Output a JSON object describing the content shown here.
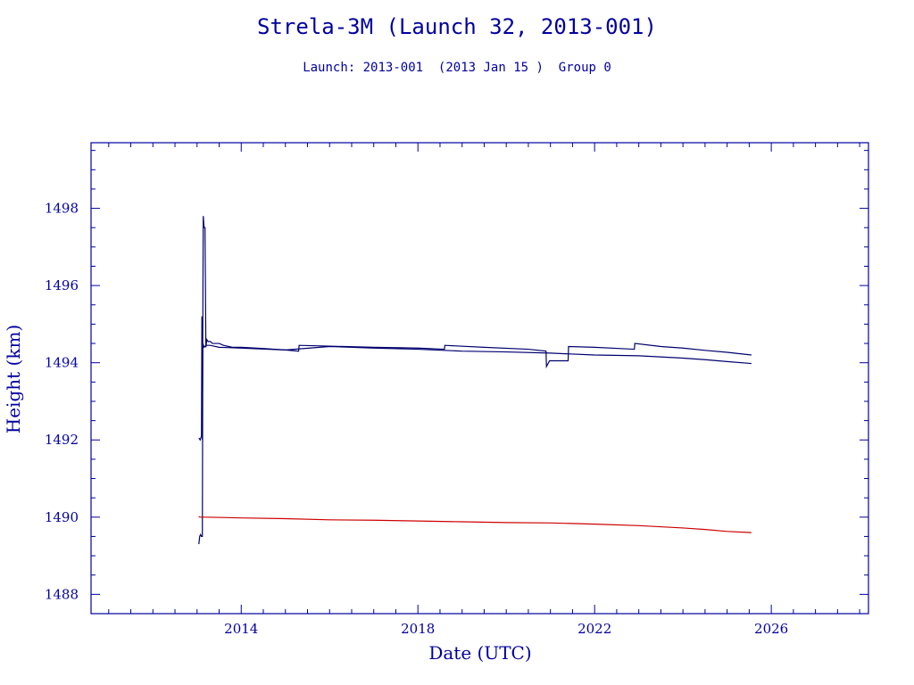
{
  "chart_data": {
    "type": "line",
    "title": "Strela-3M (Launch 32, 2013-001)",
    "subtitle": "Launch: 2013-001  (2013 Jan 15 )  Group 0",
    "xlabel": "Date (UTC)",
    "ylabel": "Height (km)",
    "xlim": [
      2010.6,
      2028.2
    ],
    "ylim": [
      1487.5,
      1499.7
    ],
    "x_ticks": [
      2014,
      2018,
      2022,
      2026
    ],
    "y_ticks": [
      1488,
      1490,
      1492,
      1494,
      1496,
      1498
    ],
    "grid": false,
    "colors": {
      "axes": "#0000a0",
      "apogee": "#00006e",
      "perigee": "#cc0000"
    },
    "series": [
      {
        "x": [
          2013.04,
          2013.07,
          2013.1,
          2013.11,
          2013.12,
          2013.14,
          2013.16,
          2013.18,
          2013.2,
          2013.22,
          2013.25,
          2013.3,
          2013.35,
          2013.5,
          2013.6,
          2013.8,
          2014.0,
          2014.5,
          2015.0,
          2015.3,
          2015.31,
          2016.0,
          2017.0,
          2018.0,
          2018.6,
          2018.61,
          2019.5,
          2020.5,
          2020.9,
          2020.91,
          2020.98,
          2021.4,
          2021.41,
          2022.0,
          2022.9,
          2022.91,
          2023.5,
          2024.0,
          2024.5,
          2025.0,
          2025.55
        ],
        "values": [
          1492.05,
          1492.0,
          1492.1,
          1495.2,
          1492.0,
          1497.8,
          1497.5,
          1497.5,
          1494.4,
          1494.6,
          1494.55,
          1494.55,
          1494.5,
          1494.5,
          1494.45,
          1494.4,
          1494.4,
          1494.37,
          1494.33,
          1494.3,
          1494.45,
          1494.43,
          1494.4,
          1494.38,
          1494.35,
          1494.45,
          1494.4,
          1494.35,
          1494.3,
          1493.9,
          1494.05,
          1494.05,
          1494.42,
          1494.4,
          1494.35,
          1494.5,
          1494.42,
          1494.38,
          1494.32,
          1494.27,
          1494.2
        ]
      },
      {
        "x": [
          2013.04,
          2013.06,
          2013.08,
          2013.1,
          2013.12,
          2013.13,
          2013.16,
          2013.2,
          2013.3,
          2013.5,
          2014.0,
          2015.0,
          2016.0,
          2017.0,
          2018.0,
          2019.0,
          2020.0,
          2021.0,
          2022.0,
          2023.0,
          2024.0,
          2024.5,
          2025.0,
          2025.55
        ],
        "values": [
          1489.3,
          1489.5,
          1489.55,
          1489.5,
          1489.5,
          1494.5,
          1494.4,
          1494.45,
          1494.45,
          1494.4,
          1494.38,
          1494.33,
          1494.42,
          1494.38,
          1494.35,
          1494.3,
          1494.28,
          1494.25,
          1494.2,
          1494.18,
          1494.12,
          1494.08,
          1494.03,
          1493.98
        ]
      },
      {
        "x": [
          2013.04,
          2013.06,
          2013.2,
          2014.0,
          2015.0,
          2016.0,
          2017.0,
          2018.0,
          2019.0,
          2020.0,
          2021.0,
          2022.0,
          2023.0,
          2024.0,
          2024.5,
          2025.0,
          2025.55
        ],
        "values": [
          1490.02,
          1490.0,
          1490.0,
          1489.98,
          1489.96,
          1489.93,
          1489.92,
          1489.9,
          1489.88,
          1489.86,
          1489.85,
          1489.82,
          1489.78,
          1489.72,
          1489.68,
          1489.63,
          1489.6
        ]
      }
    ]
  }
}
